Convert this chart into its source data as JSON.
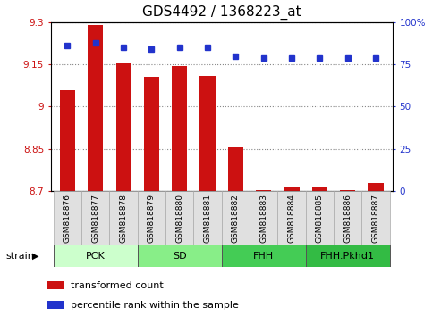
{
  "title": "GDS4492 / 1368223_at",
  "samples": [
    "GSM818876",
    "GSM818877",
    "GSM818878",
    "GSM818879",
    "GSM818880",
    "GSM818881",
    "GSM818882",
    "GSM818883",
    "GSM818884",
    "GSM818885",
    "GSM818886",
    "GSM818887"
  ],
  "bar_values": [
    9.06,
    9.29,
    9.155,
    9.105,
    9.145,
    9.11,
    8.855,
    8.705,
    8.715,
    8.715,
    8.705,
    8.73
  ],
  "percentile_values": [
    86,
    88,
    85,
    84,
    85,
    85,
    80,
    79,
    79,
    79,
    79,
    79
  ],
  "ymin": 8.7,
  "ymax": 9.3,
  "yticks": [
    8.7,
    8.85,
    9.0,
    9.15,
    9.3
  ],
  "ytick_labels": [
    "8.7",
    "8.85",
    "9",
    "9.15",
    "9.3"
  ],
  "right_yticks": [
    0,
    25,
    50,
    75,
    100
  ],
  "right_ytick_labels": [
    "0",
    "25",
    "50",
    "75",
    "100%"
  ],
  "bar_color": "#cc1111",
  "percentile_color": "#2233cc",
  "grid_color": "#888888",
  "strain_groups": [
    {
      "label": "PCK",
      "start": 0,
      "end": 2,
      "color": "#ccffcc"
    },
    {
      "label": "SD",
      "start": 3,
      "end": 5,
      "color": "#88ee88"
    },
    {
      "label": "FHH",
      "start": 6,
      "end": 8,
      "color": "#44cc55"
    },
    {
      "label": "FHH.Pkhd1",
      "start": 9,
      "end": 11,
      "color": "#33bb44"
    }
  ],
  "strain_label": "strain",
  "legend_bar_label": "transformed count",
  "legend_pct_label": "percentile rank within the sample",
  "tick_label_fontsize": 7.5,
  "sample_fontsize": 6.5,
  "title_fontsize": 11
}
